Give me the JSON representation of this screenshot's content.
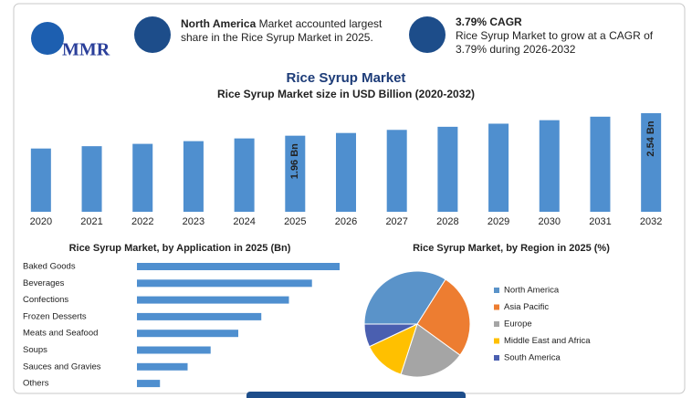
{
  "header": {
    "logo": "MMR",
    "card1": {
      "highlight": "North America",
      "text": "Market accounted largest share in the Rice Syrup Market in 2025."
    },
    "card2": {
      "title": "3.79% CAGR",
      "text": "Rice Syrup Market to grow at a CAGR of 3.79% during 2026-2032"
    },
    "title": "Rice Syrup Market"
  },
  "chart_data": [
    {
      "type": "bar",
      "title": "Rice Syrup Market size in USD Billion (2020-2032)",
      "color": "#4f8fcf",
      "categories": [
        "2020",
        "2021",
        "2022",
        "2023",
        "2024",
        "2025",
        "2026",
        "2027",
        "2028",
        "2029",
        "2030",
        "2031",
        "2032"
      ],
      "values": [
        1.63,
        1.69,
        1.75,
        1.82,
        1.89,
        1.96,
        2.03,
        2.11,
        2.19,
        2.27,
        2.36,
        2.45,
        2.54
      ],
      "value_labels": [
        null,
        null,
        null,
        null,
        null,
        "1.96 Bn",
        null,
        null,
        null,
        null,
        null,
        null,
        "2.54 Bn"
      ]
    },
    {
      "type": "bar",
      "horizontal": true,
      "title": "Rice Syrup Market, by Application in 2025 (Bn)",
      "color": "#4f8fcf",
      "categories": [
        "Baked Goods",
        "Beverages",
        "Confections",
        "Frozen Desserts",
        "Meats and Seafood",
        "Soups",
        "Sauces and Gravies",
        "Others"
      ],
      "values": [
        0.44,
        0.38,
        0.33,
        0.27,
        0.22,
        0.16,
        0.11,
        0.05
      ]
    },
    {
      "type": "pie",
      "title": "Rice Syrup Market, by Region in 2025 (%)",
      "categories": [
        "North America",
        "Asia Pacific",
        "Europe",
        "Middle East and Africa",
        "South America"
      ],
      "values": [
        34,
        26,
        20,
        13,
        7
      ],
      "colors": [
        "#5a93c9",
        "#ed7d31",
        "#a5a5a5",
        "#ffc000",
        "#4a5fb0"
      ]
    }
  ]
}
